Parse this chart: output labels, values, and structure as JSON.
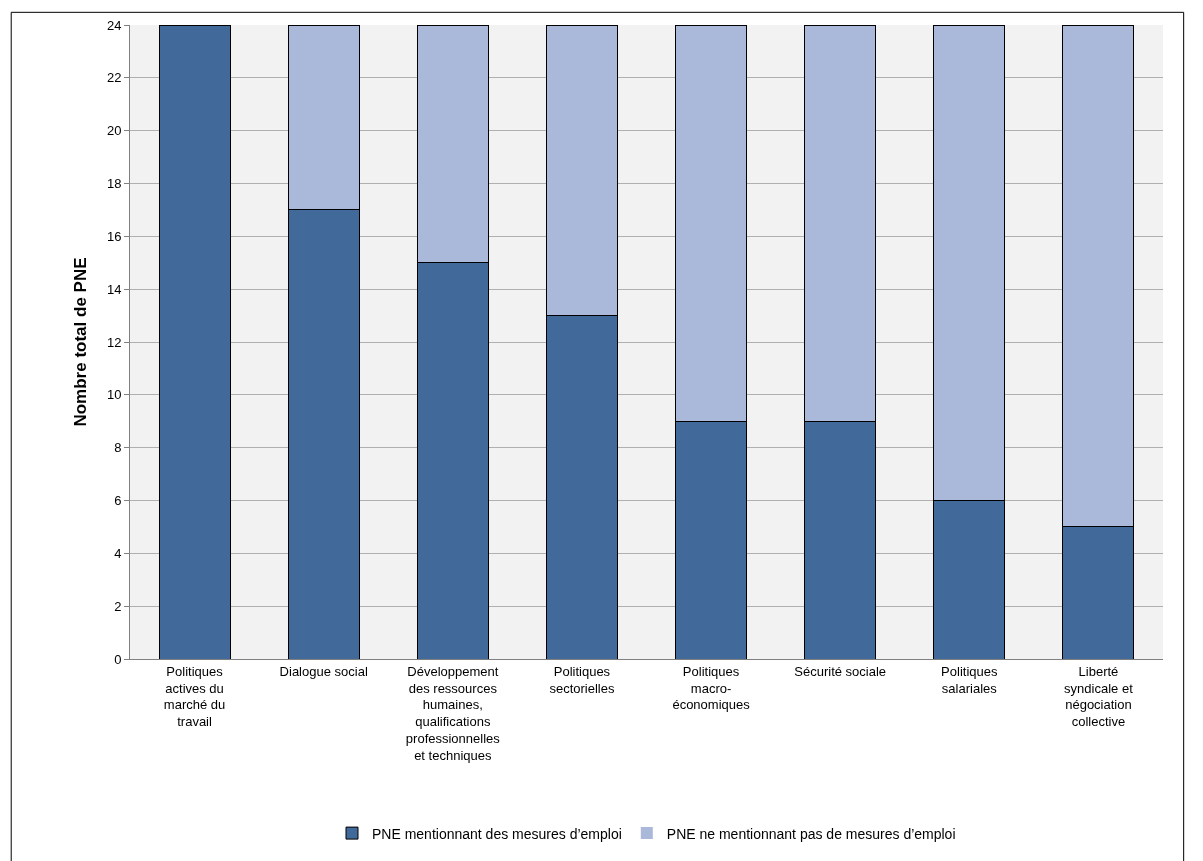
{
  "chart_data": {
    "type": "bar",
    "stacked": true,
    "ylabel": "Nombre total de PNE",
    "categories": [
      "Politiques actives du marché du travail",
      "Dialogue social",
      "Développement des ressources humaines, qualifications professionnelles et techniques",
      "Politiques sectorielles",
      "Politiques macro-économiques",
      "Sécurité sociale",
      "Politiques salariales",
      "Liberté syndicale et négociation collective"
    ],
    "series": [
      {
        "name": "PNE mentionnant des mesures d’emploi",
        "color": "#41699a",
        "values": [
          24,
          17,
          15,
          13,
          9,
          9,
          6,
          5
        ]
      },
      {
        "name": "PNE ne mentionnant pas de mesures d’emploi",
        "color": "#aab9d9",
        "values": [
          0,
          7,
          9,
          11,
          15,
          15,
          18,
          19
        ]
      }
    ],
    "ylim": [
      0,
      24
    ],
    "yticks": [
      0,
      2,
      4,
      6,
      8,
      10,
      12,
      14,
      16,
      18,
      20,
      22,
      24
    ],
    "grid": "y",
    "legend": "bottom"
  }
}
